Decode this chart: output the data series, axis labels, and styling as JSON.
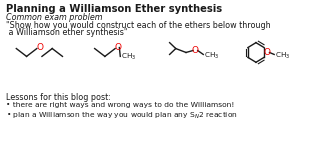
{
  "title": "Planning a Williamson Ether synthesis",
  "subtitle": "Common exam problem",
  "quote_line1": "\"Show how you would construct each of the ethers below through",
  "quote_line2": " a Williamson ether synthesis\"",
  "lessons_header": "Lessons for this blog post:",
  "bullet1": "• there are right ways and wrong ways to do the Williamson!",
  "bullet2": "• plan a Williamson the way you would plan any S$_N$2 reaction",
  "bg_color": "#ffffff",
  "text_color": "#1a1a1a",
  "oxygen_color": "#ee0000",
  "title_fontsize": 7.2,
  "body_fontsize": 5.8,
  "small_fontsize": 5.4,
  "mol_label_fontsize": 5.2
}
